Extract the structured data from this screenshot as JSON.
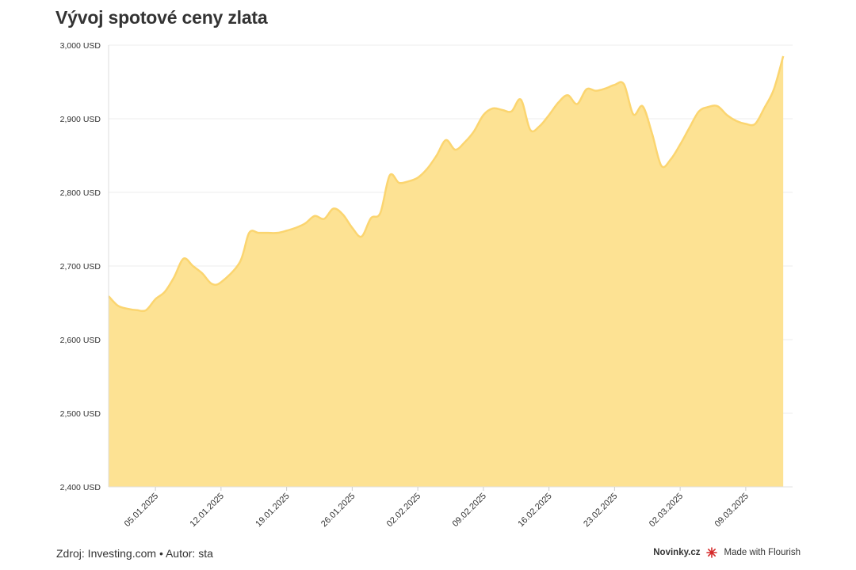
{
  "title": "Vývoj spotové ceny zlata",
  "footer": {
    "source": "Zdroj: Investing.com • Autor: sta",
    "brand": "Novinky.cz",
    "flourish": "Made with Flourish"
  },
  "colors": {
    "area_fill": "#fde293",
    "area_line": "#fbd570",
    "grid": "#ececec"
  },
  "chart_data": {
    "type": "area",
    "title": "Vývoj spotové ceny zlata",
    "xlabel": "",
    "ylabel": "",
    "ylim": [
      2400,
      3000
    ],
    "yticks": [
      2400,
      2500,
      2600,
      2700,
      2800,
      2900,
      3000
    ],
    "ytick_labels": [
      "2,400 USD",
      "2,500 USD",
      "2,600 USD",
      "2,700 USD",
      "2,800 USD",
      "2,900 USD",
      "3,000 USD"
    ],
    "xlim": [
      "2024-12-31",
      "2025-03-14"
    ],
    "xtick_dates": [
      "2025-01-05",
      "2025-01-12",
      "2025-01-19",
      "2025-01-26",
      "2025-02-02",
      "2025-02-09",
      "2025-02-16",
      "2025-02-23",
      "2025-03-02",
      "2025-03-09"
    ],
    "xtick_labels": [
      "05.01.2025",
      "12.01.2025",
      "19.01.2025",
      "26.01.2025",
      "02.02.2025",
      "09.02.2025",
      "16.02.2025",
      "23.02.2025",
      "02.03.2025",
      "09.03.2025"
    ],
    "grid": true,
    "legend": false,
    "series": [
      {
        "points": [
          [
            "2024-12-31",
            2659
          ],
          [
            "2025-01-01",
            2646
          ],
          [
            "2025-01-02",
            2642
          ],
          [
            "2025-01-03",
            2640
          ],
          [
            "2025-01-04",
            2640
          ],
          [
            "2025-01-05",
            2655
          ],
          [
            "2025-01-06",
            2665
          ],
          [
            "2025-01-07",
            2685
          ],
          [
            "2025-01-08",
            2710
          ],
          [
            "2025-01-09",
            2700
          ],
          [
            "2025-01-10",
            2690
          ],
          [
            "2025-01-11",
            2676
          ],
          [
            "2025-01-12",
            2678
          ],
          [
            "2025-01-14",
            2705
          ],
          [
            "2025-01-15",
            2745
          ],
          [
            "2025-01-16",
            2745
          ],
          [
            "2025-01-17",
            2745
          ],
          [
            "2025-01-18",
            2745
          ],
          [
            "2025-01-19",
            2748
          ],
          [
            "2025-01-20",
            2752
          ],
          [
            "2025-01-21",
            2758
          ],
          [
            "2025-01-22",
            2768
          ],
          [
            "2025-01-23",
            2764
          ],
          [
            "2025-01-24",
            2778
          ],
          [
            "2025-01-25",
            2770
          ],
          [
            "2025-01-26",
            2752
          ],
          [
            "2025-01-27",
            2740
          ],
          [
            "2025-01-28",
            2765
          ],
          [
            "2025-01-29",
            2772
          ],
          [
            "2025-01-30",
            2823
          ],
          [
            "2025-01-31",
            2813
          ],
          [
            "2025-02-01",
            2815
          ],
          [
            "2025-02-02",
            2820
          ],
          [
            "2025-02-03",
            2832
          ],
          [
            "2025-02-04",
            2850
          ],
          [
            "2025-02-05",
            2871
          ],
          [
            "2025-02-06",
            2858
          ],
          [
            "2025-02-07",
            2868
          ],
          [
            "2025-02-08",
            2883
          ],
          [
            "2025-02-09",
            2905
          ],
          [
            "2025-02-10",
            2914
          ],
          [
            "2025-02-11",
            2912
          ],
          [
            "2025-02-12",
            2910
          ],
          [
            "2025-02-13",
            2926
          ],
          [
            "2025-02-14",
            2885
          ],
          [
            "2025-02-15",
            2890
          ],
          [
            "2025-02-16",
            2905
          ],
          [
            "2025-02-17",
            2922
          ],
          [
            "2025-02-18",
            2932
          ],
          [
            "2025-02-19",
            2920
          ],
          [
            "2025-02-20",
            2940
          ],
          [
            "2025-02-21",
            2938
          ],
          [
            "2025-02-22",
            2941
          ],
          [
            "2025-02-23",
            2946
          ],
          [
            "2025-02-24",
            2947
          ],
          [
            "2025-02-25",
            2906
          ],
          [
            "2025-02-26",
            2917
          ],
          [
            "2025-02-27",
            2880
          ],
          [
            "2025-02-28",
            2836
          ],
          [
            "2025-03-01",
            2845
          ],
          [
            "2025-03-02",
            2865
          ],
          [
            "2025-03-03",
            2888
          ],
          [
            "2025-03-04",
            2910
          ],
          [
            "2025-03-05",
            2916
          ],
          [
            "2025-03-06",
            2917
          ],
          [
            "2025-03-07",
            2905
          ],
          [
            "2025-03-08",
            2897
          ],
          [
            "2025-03-09",
            2893
          ],
          [
            "2025-03-10",
            2893
          ],
          [
            "2025-03-11",
            2915
          ],
          [
            "2025-03-12",
            2940
          ],
          [
            "2025-03-13",
            2985
          ]
        ]
      }
    ]
  }
}
